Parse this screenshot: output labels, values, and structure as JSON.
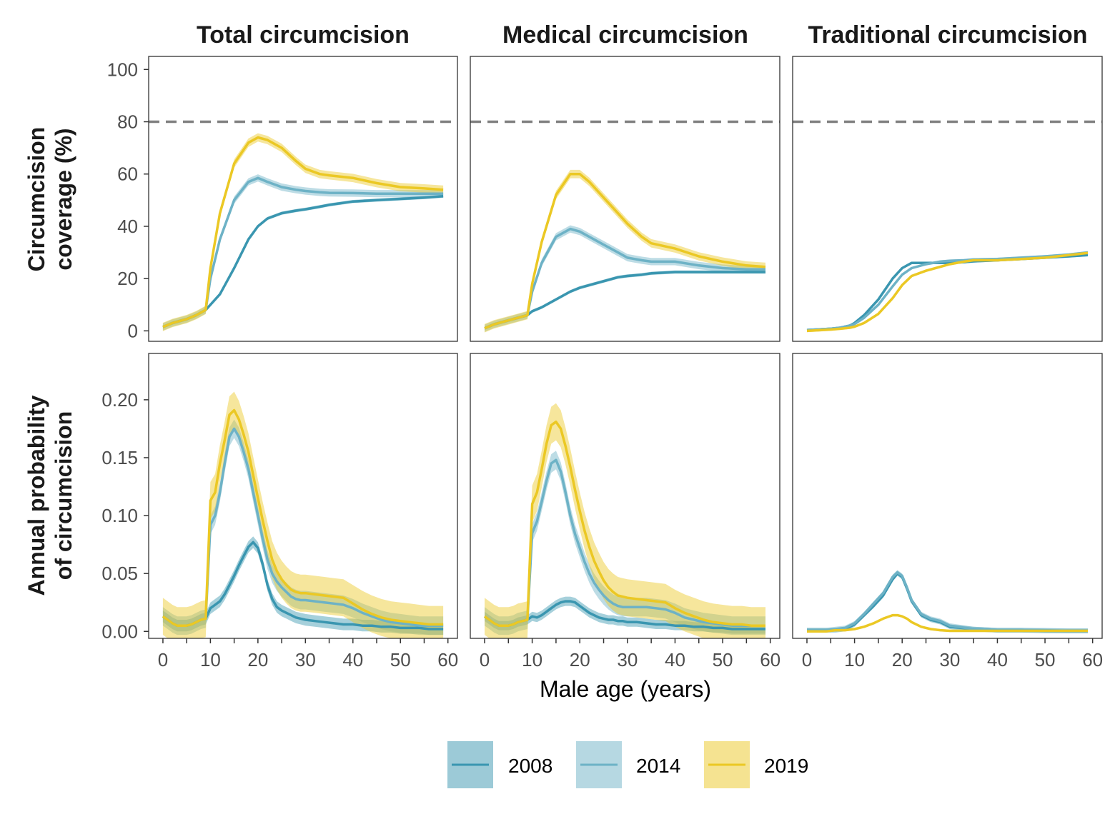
{
  "colors": {
    "2008": "#3a96b0",
    "2014": "#6db2c6",
    "2019": "#ebc824",
    "reference_line": "#808080"
  },
  "legend": {
    "items": [
      "2008",
      "2014",
      "2019"
    ],
    "placement": "bottom"
  },
  "facets": {
    "columns": [
      "Total circumcision",
      "Medical circumcision",
      "Traditional circumcision"
    ],
    "rows": [
      "Circumcision coverage (%)",
      "Annual probability of circumcision"
    ]
  },
  "axes": {
    "xlabel": "Male age (years)",
    "ylabel_top": [
      "Circumcision",
      "coverage (%)"
    ],
    "ylabel_bottom": [
      "Annual probability",
      "of circumcision"
    ],
    "x_ticks": [
      "0",
      "10",
      "20",
      "30",
      "40",
      "50",
      "60"
    ],
    "y_ticks_top": [
      "0",
      "20",
      "40",
      "60",
      "80",
      "100"
    ],
    "y_ticks_bottom": [
      "0.00",
      "0.05",
      "0.10",
      "0.15",
      "0.20"
    ]
  },
  "chart_data": [
    {
      "type": "line",
      "row": "coverage",
      "panel": "Total circumcision",
      "x": [
        0,
        2,
        5,
        7,
        9,
        10,
        12,
        15,
        18,
        20,
        22,
        25,
        28,
        30,
        33,
        35,
        40,
        45,
        50,
        55,
        59
      ],
      "xlim": [
        -3,
        62
      ],
      "ylim": [
        -4,
        105
      ],
      "hline": 80,
      "series": [
        {
          "name": "2008",
          "values": [
            1.5,
            3,
            4.5,
            6,
            8,
            10,
            14,
            24,
            35,
            40,
            43,
            45,
            46,
            46.5,
            47.5,
            48.2,
            49.5,
            50,
            50.5,
            51,
            51.5
          ],
          "band": 0.6
        },
        {
          "name": "2014",
          "values": [
            1.5,
            3,
            4.5,
            6,
            8,
            20,
            35,
            50,
            57,
            58.5,
            57,
            55,
            54,
            53.5,
            53,
            52.8,
            52.7,
            52.5,
            52.5,
            52.5,
            52.5
          ],
          "band": 1.4
        },
        {
          "name": "2019",
          "values": [
            1.5,
            3,
            4.5,
            6,
            8,
            24,
            45,
            64,
            72,
            74,
            73,
            70,
            65,
            62,
            60,
            59.5,
            58.5,
            56.5,
            55,
            54.5,
            54
          ],
          "band": 1.6
        }
      ]
    },
    {
      "type": "line",
      "row": "coverage",
      "panel": "Medical circumcision",
      "x": [
        0,
        2,
        5,
        7,
        9,
        10,
        12,
        15,
        18,
        20,
        22,
        25,
        28,
        30,
        33,
        35,
        40,
        45,
        50,
        55,
        59
      ],
      "xlim": [
        -3,
        62
      ],
      "ylim": [
        -4,
        105
      ],
      "hline": 80,
      "series": [
        {
          "name": "2008",
          "values": [
            1,
            2.5,
            4,
            5,
            6,
            7.5,
            9,
            12,
            15,
            16.5,
            17.5,
            19,
            20.5,
            21,
            21.5,
            22,
            22.5,
            22.5,
            22.5,
            22.5,
            22.5
          ],
          "band": 0.6
        },
        {
          "name": "2014",
          "values": [
            1,
            2.5,
            4,
            5,
            6,
            15,
            26,
            36,
            39,
            38,
            36,
            33,
            30,
            28,
            27,
            26.5,
            26.5,
            25,
            24,
            23.5,
            23.5
          ],
          "band": 1.4
        },
        {
          "name": "2019",
          "values": [
            1,
            2.5,
            4,
            5,
            6,
            18,
            34,
            52,
            60,
            60,
            57,
            51,
            45,
            41,
            36,
            33.5,
            31.5,
            28.5,
            26.5,
            25,
            24.5
          ],
          "band": 1.6
        }
      ]
    },
    {
      "type": "line",
      "row": "coverage",
      "panel": "Traditional circumcision",
      "x": [
        0,
        2,
        5,
        7,
        9,
        10,
        12,
        15,
        18,
        20,
        22,
        25,
        28,
        30,
        33,
        35,
        40,
        45,
        50,
        55,
        59
      ],
      "xlim": [
        -3,
        62
      ],
      "ylim": [
        -4,
        105
      ],
      "hline": 80,
      "series": [
        {
          "name": "2008",
          "values": [
            0.3,
            0.5,
            0.8,
            1.2,
            2,
            3,
            6,
            12,
            20,
            24,
            26,
            26,
            26,
            26,
            26.3,
            26.6,
            27,
            27.5,
            28,
            28.5,
            29
          ],
          "band": 0.5
        },
        {
          "name": "2014",
          "values": [
            0.3,
            0.5,
            0.8,
            1.2,
            2,
            2.6,
            5,
            10,
            17,
            21.5,
            24,
            25.5,
            26.5,
            26.8,
            27,
            27.3,
            27.5,
            28,
            28.5,
            29.2,
            30
          ],
          "band": 0.5
        },
        {
          "name": "2019",
          "values": [
            0,
            0.2,
            0.5,
            0.8,
            1.2,
            1.6,
            3,
            6.5,
            12.5,
            17.5,
            21,
            23,
            24.5,
            25.5,
            26.5,
            27,
            27,
            27.5,
            28,
            29,
            29.8
          ],
          "band": 0.5
        }
      ]
    },
    {
      "type": "line",
      "row": "probability",
      "panel": "Total circumcision",
      "x": [
        0,
        1,
        2,
        3,
        4,
        5,
        6,
        7,
        8,
        9,
        10,
        11,
        12,
        13,
        14,
        15,
        16,
        17,
        18,
        19,
        20,
        21,
        22,
        23,
        24,
        25,
        26,
        27,
        28,
        29,
        30,
        32,
        34,
        36,
        38,
        40,
        42,
        44,
        46,
        48,
        50,
        52,
        54,
        56,
        58,
        59
      ],
      "xlim": [
        -3,
        62
      ],
      "ylim": [
        -0.006,
        0.24
      ],
      "series": [
        {
          "name": "2008",
          "values": [
            0.013,
            0.01,
            0.007,
            0.005,
            0.005,
            0.005,
            0.006,
            0.008,
            0.01,
            0.011,
            0.02,
            0.023,
            0.026,
            0.032,
            0.04,
            0.048,
            0.057,
            0.065,
            0.073,
            0.077,
            0.072,
            0.058,
            0.04,
            0.028,
            0.021,
            0.018,
            0.016,
            0.014,
            0.012,
            0.011,
            0.01,
            0.009,
            0.008,
            0.007,
            0.006,
            0.006,
            0.005,
            0.005,
            0.004,
            0.004,
            0.003,
            0.003,
            0.003,
            0.002,
            0.002,
            0.002
          ],
          "band": 0.005
        },
        {
          "name": "2014",
          "values": [
            0.013,
            0.01,
            0.007,
            0.005,
            0.005,
            0.005,
            0.006,
            0.008,
            0.01,
            0.011,
            0.092,
            0.1,
            0.12,
            0.145,
            0.168,
            0.175,
            0.168,
            0.155,
            0.14,
            0.12,
            0.1,
            0.08,
            0.062,
            0.05,
            0.043,
            0.038,
            0.034,
            0.03,
            0.028,
            0.027,
            0.027,
            0.026,
            0.025,
            0.024,
            0.023,
            0.02,
            0.016,
            0.013,
            0.01,
            0.008,
            0.007,
            0.006,
            0.005,
            0.005,
            0.005,
            0.005
          ],
          "band": 0.008
        },
        {
          "name": "2019",
          "values": [
            0.013,
            0.01,
            0.007,
            0.005,
            0.005,
            0.005,
            0.006,
            0.008,
            0.01,
            0.011,
            0.113,
            0.12,
            0.145,
            0.165,
            0.187,
            0.191,
            0.183,
            0.17,
            0.155,
            0.135,
            0.115,
            0.096,
            0.078,
            0.062,
            0.052,
            0.045,
            0.04,
            0.036,
            0.034,
            0.033,
            0.033,
            0.032,
            0.031,
            0.03,
            0.029,
            0.024,
            0.019,
            0.015,
            0.012,
            0.01,
            0.009,
            0.008,
            0.007,
            0.006,
            0.006,
            0.006
          ],
          "band": 0.016
        }
      ]
    },
    {
      "type": "line",
      "row": "probability",
      "panel": "Medical circumcision",
      "x": [
        0,
        1,
        2,
        3,
        4,
        5,
        6,
        7,
        8,
        9,
        10,
        11,
        12,
        13,
        14,
        15,
        16,
        17,
        18,
        19,
        20,
        21,
        22,
        23,
        24,
        25,
        26,
        27,
        28,
        29,
        30,
        32,
        34,
        36,
        38,
        40,
        42,
        44,
        46,
        48,
        50,
        52,
        54,
        56,
        58,
        59
      ],
      "xlim": [
        -3,
        62
      ],
      "ylim": [
        -0.006,
        0.24
      ],
      "series": [
        {
          "name": "2008",
          "values": [
            0.013,
            0.01,
            0.007,
            0.005,
            0.005,
            0.005,
            0.006,
            0.008,
            0.009,
            0.01,
            0.013,
            0.012,
            0.014,
            0.017,
            0.02,
            0.023,
            0.025,
            0.026,
            0.026,
            0.025,
            0.022,
            0.019,
            0.016,
            0.014,
            0.012,
            0.011,
            0.01,
            0.01,
            0.009,
            0.009,
            0.008,
            0.008,
            0.007,
            0.006,
            0.006,
            0.005,
            0.005,
            0.004,
            0.004,
            0.003,
            0.003,
            0.002,
            0.002,
            0.002,
            0.002,
            0.002
          ],
          "band": 0.004
        },
        {
          "name": "2014",
          "values": [
            0.013,
            0.01,
            0.007,
            0.005,
            0.005,
            0.005,
            0.006,
            0.008,
            0.009,
            0.01,
            0.085,
            0.095,
            0.112,
            0.13,
            0.145,
            0.148,
            0.138,
            0.12,
            0.1,
            0.084,
            0.072,
            0.06,
            0.05,
            0.042,
            0.036,
            0.031,
            0.027,
            0.024,
            0.022,
            0.021,
            0.021,
            0.021,
            0.021,
            0.02,
            0.019,
            0.016,
            0.012,
            0.01,
            0.008,
            0.007,
            0.006,
            0.005,
            0.005,
            0.005,
            0.005,
            0.005
          ],
          "band": 0.008
        },
        {
          "name": "2019",
          "values": [
            0.013,
            0.01,
            0.007,
            0.005,
            0.005,
            0.005,
            0.006,
            0.008,
            0.009,
            0.01,
            0.11,
            0.12,
            0.14,
            0.162,
            0.178,
            0.181,
            0.175,
            0.16,
            0.142,
            0.122,
            0.104,
            0.087,
            0.073,
            0.061,
            0.052,
            0.044,
            0.038,
            0.034,
            0.031,
            0.03,
            0.029,
            0.028,
            0.027,
            0.026,
            0.025,
            0.02,
            0.016,
            0.013,
            0.01,
            0.008,
            0.007,
            0.006,
            0.006,
            0.005,
            0.005,
            0.005
          ],
          "band": 0.016
        }
      ]
    },
    {
      "type": "line",
      "row": "probability",
      "panel": "Traditional circumcision",
      "x": [
        0,
        2,
        4,
        6,
        8,
        10,
        12,
        14,
        16,
        18,
        19,
        20,
        21,
        22,
        24,
        26,
        28,
        30,
        35,
        40,
        45,
        50,
        55,
        59
      ],
      "xlim": [
        -3,
        62
      ],
      "ylim": [
        -0.006,
        0.24
      ],
      "series": [
        {
          "name": "2008",
          "values": [
            0.001,
            0.001,
            0.001,
            0.001,
            0.002,
            0.006,
            0.014,
            0.022,
            0.031,
            0.045,
            0.05,
            0.047,
            0.037,
            0.026,
            0.014,
            0.01,
            0.008,
            0.004,
            0.002,
            0.001,
            0.001,
            0.0005,
            0.0005,
            0.0005
          ],
          "band": 0.002
        },
        {
          "name": "2014",
          "values": [
            0.001,
            0.001,
            0.001,
            0.002,
            0.003,
            0.007,
            0.015,
            0.024,
            0.033,
            0.047,
            0.051,
            0.048,
            0.038,
            0.027,
            0.015,
            0.011,
            0.009,
            0.005,
            0.002,
            0.001,
            0.001,
            0.001,
            0.0005,
            0.0005
          ],
          "band": 0.002
        },
        {
          "name": "2019",
          "values": [
            0,
            0,
            0,
            0.001,
            0.001,
            0.002,
            0.004,
            0.007,
            0.011,
            0.014,
            0.014,
            0.013,
            0.011,
            0.008,
            0.004,
            0.002,
            0.001,
            0.0005,
            0.0005,
            0.0005,
            0.0005,
            0.0005,
            0.0005,
            0.0005
          ],
          "band": 0.001
        }
      ]
    }
  ]
}
